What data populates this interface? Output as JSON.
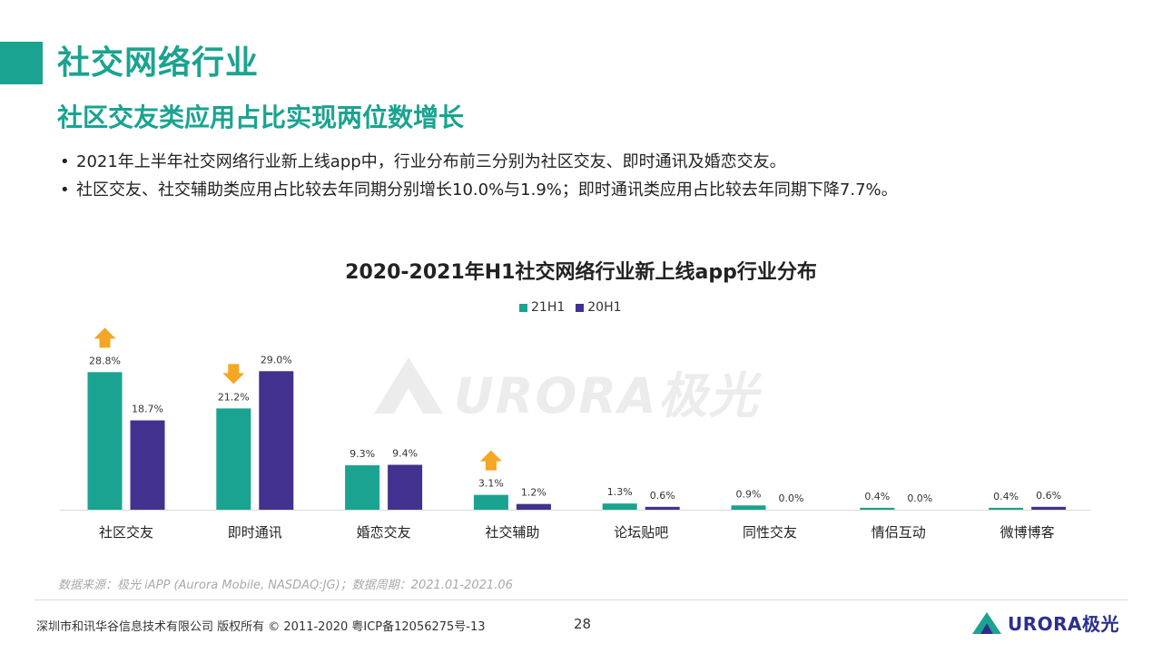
{
  "header": {
    "title": "社交网络行业",
    "subtitle": "社区交友类应用占比实现两位数增长"
  },
  "bullets": [
    "2021年上半年社交网络行业新上线app中，行业分布前三分别为社区交友、即时通讯及婚恋交友。",
    "社区交友、社交辅助类应用占比较去年同期分别增长10.0%与1.9%；即时通讯类应用占比较去年同期下降7.7%。"
  ],
  "colors": {
    "accent": "#1aa390",
    "series1": "#1aa390",
    "series2": "#43318f",
    "arrow": "#f5a623"
  },
  "chart_data": {
    "type": "bar",
    "title": "2020-2021年H1社交网络行业新上线app行业分布",
    "categories": [
      "社区交友",
      "即时通讯",
      "婚恋交友",
      "社交辅助",
      "论坛贴吧",
      "同性交友",
      "情侣互动",
      "微博博客"
    ],
    "series": [
      {
        "name": "21H1",
        "values": [
          28.8,
          21.2,
          9.3,
          3.1,
          1.3,
          0.9,
          0.4,
          0.4
        ],
        "labels": [
          "28.8%",
          "21.2%",
          "9.3%",
          "3.1%",
          "1.3%",
          "0.9%",
          "0.4%",
          "0.4%"
        ]
      },
      {
        "name": "20H1",
        "values": [
          18.7,
          29.0,
          9.4,
          1.2,
          0.6,
          0.0,
          0.0,
          0.6
        ],
        "labels": [
          "18.7%",
          "29.0%",
          "9.4%",
          "1.2%",
          "0.6%",
          "0.0%",
          "0.0%",
          "0.6%"
        ]
      }
    ],
    "arrows": [
      {
        "category": "社区交友",
        "direction": "up"
      },
      {
        "category": "即时通讯",
        "direction": "down"
      },
      {
        "category": "社交辅助",
        "direction": "up"
      }
    ],
    "ylim": [
      0,
      30
    ],
    "xlabel": "",
    "ylabel": ""
  },
  "watermark": {
    "text": "URORA极光"
  },
  "footer": {
    "source": "数据来源：极光 iAPP (Aurora Mobile, NASDAQ:JG)；数据周期：2021.01-2021.06",
    "copyright": "深圳市和讯华谷信息技术有限公司  版权所有 © 2011-2020 粤ICP备12056275号-13",
    "page_number": "28",
    "logo_text": "URORA极光"
  }
}
